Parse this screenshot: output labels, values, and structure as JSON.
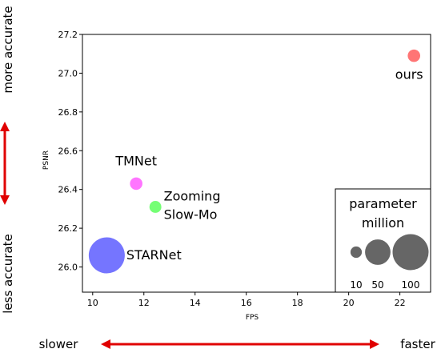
{
  "chart_data": {
    "type": "scatter",
    "title": "",
    "xlabel": "FPS",
    "ylabel": "PSNR",
    "xlim": [
      9.6,
      23.2
    ],
    "ylim": [
      25.87,
      27.2
    ],
    "x_ticks": [
      10,
      12,
      14,
      16,
      18,
      20,
      22
    ],
    "y_ticks": [
      26.0,
      26.2,
      26.4,
      26.6,
      26.8,
      27.0,
      27.2
    ],
    "grid": false,
    "points": [
      {
        "label": "STARNet",
        "fps": 10.55,
        "psnr": 26.06,
        "params_million": 100,
        "color": "#6666ff"
      },
      {
        "label": "TMNet",
        "fps": 11.7,
        "psnr": 26.43,
        "params_million": 12,
        "color": "#ff66ff"
      },
      {
        "label": "Zooming\nSlow-Mo",
        "label_lines": [
          "Zooming",
          "Slow-Mo"
        ],
        "fps": 12.45,
        "psnr": 26.31,
        "params_million": 11,
        "color": "#66ff66"
      },
      {
        "label": "ours",
        "fps": 22.55,
        "psnr": 27.09,
        "params_million": 12,
        "color": "#ff6666"
      }
    ],
    "size_legend": {
      "title_lines": [
        "parameter",
        "million"
      ],
      "entries": [
        {
          "label": "10",
          "value": 10
        },
        {
          "label": "50",
          "value": 50
        },
        {
          "label": "100",
          "value": 100
        }
      ],
      "color": "#666666",
      "placement": "bottom-right"
    }
  },
  "annotations": {
    "y_top": "more accurate",
    "y_bottom": "less accurate",
    "x_left": "slower",
    "x_right": "faster"
  },
  "colors": {
    "arrow": "#e00000",
    "axis": "#000000"
  }
}
